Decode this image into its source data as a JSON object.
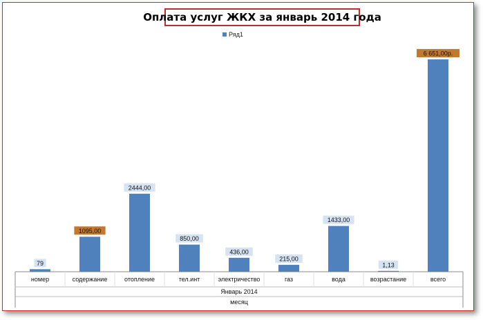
{
  "chart_data": {
    "type": "bar",
    "title": "Оплата услуг ЖКХ за январь 2014 года",
    "categories": [
      "номер",
      "содержание",
      "отопление",
      "тел.инт",
      "электричество",
      "газ",
      "вода",
      "возрастание",
      "всего"
    ],
    "group_label": "Январь 2014",
    "xlabel": "месяц",
    "series": [
      {
        "name": "Ряд1",
        "values": [
          79,
          1095,
          2444,
          850,
          436,
          215,
          1433,
          1.13,
          6651
        ]
      }
    ],
    "data_labels": [
      "79",
      "1095,00",
      "2444,00",
      "850,00",
      "436,00",
      "215,00",
      "1433,00",
      "1,13",
      "6 651,00р."
    ],
    "highlighted_labels": [
      1,
      8
    ],
    "ylim": [
      0,
      7150
    ],
    "legend_position": "top",
    "grid": false,
    "colors": {
      "bar": "#4f81bd",
      "label_bg": "#d6e3f3",
      "highlight_label_bg": "#c0792f",
      "frame": "#d02b2b"
    }
  }
}
